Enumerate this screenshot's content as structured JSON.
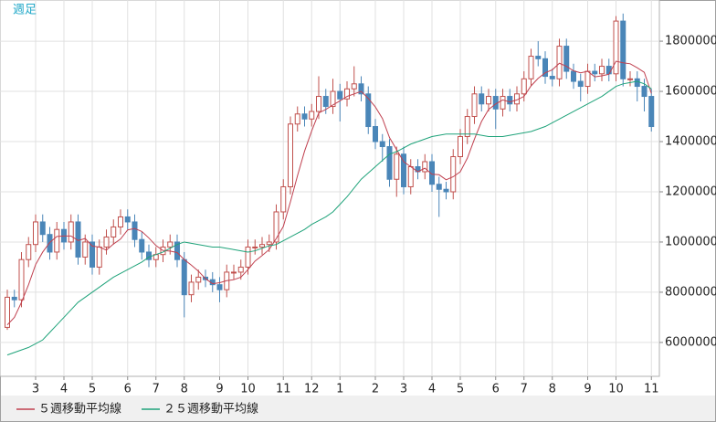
{
  "chart_data": {
    "type": "candlestick",
    "period_label": "週足",
    "categories": [
      null,
      null,
      null,
      null,
      "3",
      null,
      null,
      null,
      "4",
      null,
      null,
      null,
      "5",
      null,
      null,
      null,
      null,
      "6",
      null,
      null,
      null,
      "7",
      null,
      null,
      null,
      "8",
      null,
      null,
      null,
      null,
      "9",
      null,
      null,
      null,
      "10",
      null,
      null,
      null,
      null,
      "11",
      null,
      null,
      null,
      "12",
      null,
      null,
      null,
      "1",
      null,
      null,
      null,
      null,
      "2",
      null,
      null,
      null,
      "3",
      null,
      null,
      null,
      "4",
      null,
      null,
      null,
      "5",
      null,
      null,
      null,
      null,
      "6",
      null,
      null,
      null,
      "7",
      null,
      null,
      null,
      "8",
      null,
      null,
      null,
      null,
      "9",
      null,
      null,
      null,
      "10",
      null,
      null,
      null,
      null,
      "11"
    ],
    "open": [
      6600000,
      7800000,
      7700000,
      9300000,
      9900000,
      10800000,
      10300000,
      9600000,
      10500000,
      10000000,
      10800000,
      9400000,
      10000000,
      9000000,
      9800000,
      10200000,
      10600000,
      11000000,
      10800000,
      10100000,
      9600000,
      9300000,
      9500000,
      9800000,
      10000000,
      9300000,
      7900000,
      8400000,
      8600000,
      8500000,
      8300000,
      8100000,
      8800000,
      8800000,
      9000000,
      9800000,
      9800000,
      9900000,
      10000000,
      11200000,
      12200000,
      14700000,
      15100000,
      14900000,
      15200000,
      15800000,
      15400000,
      16000000,
      15700000,
      16100000,
      16300000,
      15900000,
      14600000,
      14000000,
      13800000,
      12500000,
      13500000,
      12200000,
      13000000,
      12800000,
      13200000,
      12300000,
      12100000,
      12000000,
      13400000,
      14200000,
      15000000,
      15900000,
      15500000,
      15800000,
      15300000,
      15800000,
      15500000,
      15900000,
      16500000,
      17400000,
      17300000,
      16600000,
      16500000,
      17800000,
      16800000,
      16400000,
      16200000,
      16800000,
      16700000,
      17000000,
      16700000,
      18800000,
      16500000,
      16500000,
      16200000,
      15800000
    ],
    "high": [
      8100000,
      8100000,
      9600000,
      10200000,
      11100000,
      11100000,
      10600000,
      10800000,
      10800000,
      11100000,
      11100000,
      10300000,
      10300000,
      10100000,
      10500000,
      10900000,
      11300000,
      11300000,
      11100000,
      10400000,
      9900000,
      9800000,
      10100000,
      10300000,
      10300000,
      9600000,
      8700000,
      8900000,
      8900000,
      8800000,
      8600000,
      9100000,
      9100000,
      9300000,
      10100000,
      10100000,
      10200000,
      10300000,
      11500000,
      12500000,
      15000000,
      15400000,
      15400000,
      15500000,
      16600000,
      16100000,
      16500000,
      16300000,
      16400000,
      17000000,
      16600000,
      16200000,
      14900000,
      14300000,
      14100000,
      13800000,
      13800000,
      13300000,
      13300000,
      13500000,
      13500000,
      12600000,
      12400000,
      13700000,
      14500000,
      15300000,
      16200000,
      16200000,
      16100000,
      16100000,
      16100000,
      16100000,
      16200000,
      16800000,
      17700000,
      18000000,
      17600000,
      16900000,
      18100000,
      18100000,
      17100000,
      16700000,
      17100000,
      17100000,
      17300000,
      17300000,
      19000000,
      19100000,
      16800000,
      16800000,
      16500000,
      16100000
    ],
    "low": [
      6500000,
      7400000,
      7400000,
      9000000,
      9600000,
      10000000,
      9300000,
      9300000,
      9700000,
      9700000,
      9100000,
      9100000,
      8700000,
      8700000,
      9500000,
      9900000,
      10300000,
      10500000,
      9800000,
      9300000,
      9000000,
      9000000,
      9200000,
      9500000,
      9000000,
      7000000,
      7600000,
      8100000,
      8200000,
      8000000,
      7600000,
      7800000,
      8500000,
      8500000,
      8700000,
      9500000,
      9500000,
      9600000,
      9700000,
      10900000,
      11900000,
      14400000,
      14600000,
      14600000,
      14900000,
      15100000,
      15100000,
      14800000,
      15400000,
      15800000,
      15600000,
      14300000,
      13700000,
      13200000,
      12200000,
      11800000,
      11900000,
      11900000,
      12500000,
      12500000,
      12000000,
      11000000,
      11700000,
      11700000,
      13100000,
      13900000,
      14700000,
      15200000,
      15200000,
      14500000,
      15000000,
      15200000,
      15200000,
      15600000,
      16200000,
      17000000,
      16300000,
      16200000,
      16200000,
      16500000,
      16100000,
      15600000,
      15900000,
      16400000,
      16400000,
      16400000,
      16400000,
      16200000,
      16200000,
      15600000,
      15200000,
      14400000
    ],
    "close": [
      7800000,
      7700000,
      9300000,
      9900000,
      10800000,
      10300000,
      9600000,
      10500000,
      10000000,
      10800000,
      9400000,
      10000000,
      9000000,
      9800000,
      10200000,
      10600000,
      11000000,
      10800000,
      10100000,
      9600000,
      9300000,
      9500000,
      9800000,
      10000000,
      9300000,
      7900000,
      8400000,
      8600000,
      8500000,
      8300000,
      8100000,
      8800000,
      8800000,
      9000000,
      9800000,
      9800000,
      9900000,
      10000000,
      11200000,
      12200000,
      14700000,
      15100000,
      14900000,
      15200000,
      15800000,
      15400000,
      16000000,
      15700000,
      16100000,
      16300000,
      15900000,
      14600000,
      14000000,
      13800000,
      12500000,
      13500000,
      12200000,
      13000000,
      12800000,
      13200000,
      12300000,
      12100000,
      12000000,
      13400000,
      14200000,
      15000000,
      15900000,
      15500000,
      15800000,
      15300000,
      15800000,
      15500000,
      15900000,
      16500000,
      17400000,
      17300000,
      16600000,
      16500000,
      17800000,
      16800000,
      16400000,
      16200000,
      16800000,
      16700000,
      17000000,
      16700000,
      18800000,
      16500000,
      16500000,
      16200000,
      15800000,
      14600000
    ],
    "up_color": "#c0504d",
    "down_color": "#4a86b8",
    "series": [
      {
        "name": "５週移動平均線",
        "color": "#c0404f",
        "values": [
          6700000,
          7000000,
          7600000,
          8300000,
          9100000,
          9600000,
          9980000,
          10220000,
          10240000,
          10240000,
          10060000,
          10140000,
          9840000,
          9800000,
          9680000,
          9920000,
          10120000,
          10480000,
          10540000,
          10420000,
          10160000,
          9860000,
          9660000,
          9640000,
          9580000,
          9300000,
          9080000,
          8840000,
          8540000,
          8340000,
          8380000,
          8460000,
          8500000,
          8600000,
          8900000,
          9240000,
          9460000,
          9700000,
          10140000,
          10620000,
          11600000,
          12640000,
          13620000,
          14420000,
          15140000,
          15280000,
          15460000,
          15620000,
          15800000,
          15900000,
          16000000,
          15720000,
          15380000,
          14920000,
          14160000,
          13680000,
          13200000,
          13000000,
          12800000,
          12940000,
          12700000,
          12680000,
          12480000,
          12600000,
          12800000,
          13340000,
          14100000,
          14800000,
          15280000,
          15500000,
          15660000,
          15580000,
          15660000,
          15800000,
          16220000,
          16520000,
          16740000,
          16860000,
          17120000,
          17000000,
          16820000,
          16740000,
          16800000,
          16580000,
          16620000,
          16680000,
          17200000,
          17140000,
          17100000,
          16940000,
          16760000,
          15920000
        ]
      },
      {
        "name": "２５週移動平均線",
        "color": "#1fa37a",
        "values": [
          5500000,
          5600000,
          5700000,
          5800000,
          5950000,
          6100000,
          6400000,
          6700000,
          7000000,
          7300000,
          7600000,
          7800000,
          8000000,
          8200000,
          8400000,
          8600000,
          8750000,
          8900000,
          9050000,
          9200000,
          9400000,
          9500000,
          9600000,
          9750000,
          9900000,
          10000000,
          9950000,
          9900000,
          9850000,
          9800000,
          9800000,
          9750000,
          9700000,
          9650000,
          9600000,
          9650000,
          9750000,
          9850000,
          9900000,
          10050000,
          10200000,
          10350000,
          10500000,
          10700000,
          10850000,
          11000000,
          11200000,
          11500000,
          11800000,
          12150000,
          12500000,
          12750000,
          13000000,
          13250000,
          13500000,
          13600000,
          13750000,
          13900000,
          14000000,
          14100000,
          14200000,
          14250000,
          14300000,
          14300000,
          14300000,
          14300000,
          14300000,
          14250000,
          14200000,
          14200000,
          14200000,
          14250000,
          14300000,
          14350000,
          14400000,
          14500000,
          14600000,
          14750000,
          14900000,
          15050000,
          15200000,
          15350000,
          15500000,
          15650000,
          15800000,
          16000000,
          16200000,
          16300000,
          16350000,
          16400000,
          16300000,
          16100000
        ]
      }
    ],
    "ylim": [
      4650000,
      19640000
    ],
    "yticks": [
      6000000,
      8000000,
      10000000,
      12000000,
      14000000,
      16000000,
      18000000
    ],
    "grid": true
  }
}
